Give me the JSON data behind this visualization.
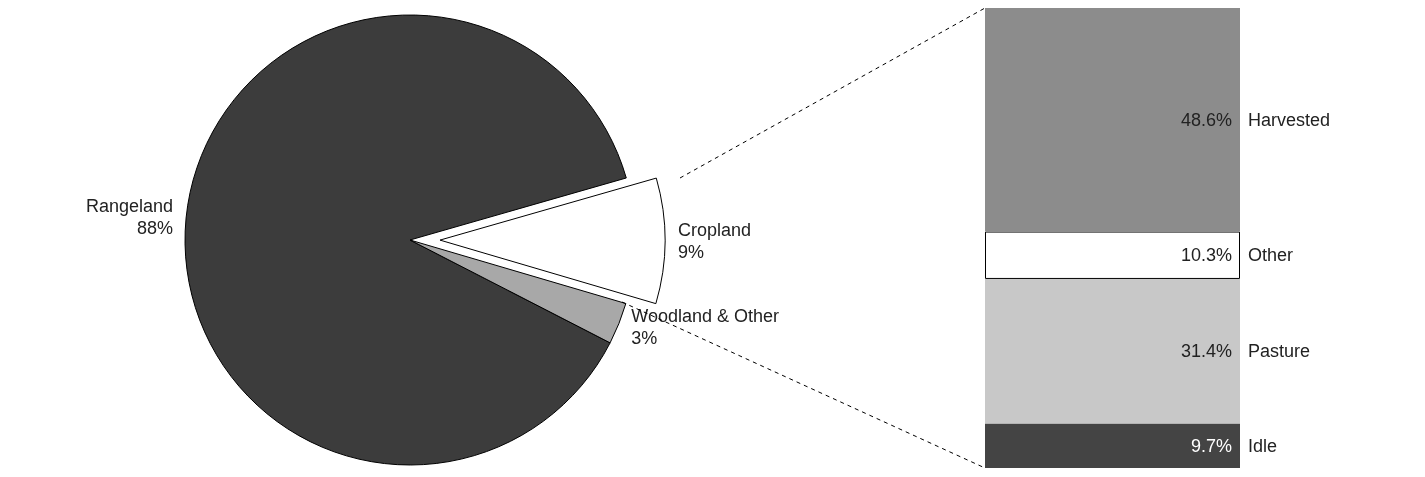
{
  "chart_data": [
    {
      "type": "pie",
      "categories": [
        "Rangeland",
        "Cropland",
        "Woodland & Other"
      ],
      "values": [
        88,
        9,
        3
      ],
      "value_labels": [
        "88%",
        "9%",
        "3%"
      ],
      "colors": [
        "#3c3c3c",
        "#ffffff",
        "#a8a8a8"
      ],
      "legend": false
    },
    {
      "type": "bar",
      "stacked": true,
      "categories": [
        null
      ],
      "legend": false,
      "series": [
        {
          "name": "Idle",
          "color": "#444444",
          "values": [
            9.7
          ],
          "value_labels": [
            "9.7%"
          ]
        },
        {
          "name": "Pasture",
          "color": "#c8c8c8",
          "values": [
            31.4
          ],
          "value_labels": [
            "31.4%"
          ]
        },
        {
          "name": "Other",
          "color": "#ffffff",
          "values": [
            10.3
          ],
          "value_labels": [
            "10.3%"
          ]
        },
        {
          "name": "Harvested",
          "color": "#8c8c8c",
          "values": [
            48.6
          ],
          "value_labels": [
            "48.6%"
          ]
        }
      ]
    }
  ]
}
